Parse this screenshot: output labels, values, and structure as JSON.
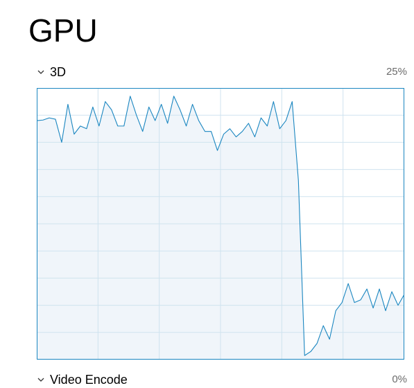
{
  "page": {
    "title": "GPU"
  },
  "engines": [
    {
      "name": "3D",
      "max_label": "25%"
    },
    {
      "name": "Video Encode",
      "max_label": "0%"
    }
  ],
  "colors": {
    "line": "#1a86c0",
    "fill": "#f0f5fa",
    "grid": "#cfe3ef",
    "border": "#1a86c0",
    "percent_text": "#6b6b6b"
  },
  "chart_data": {
    "type": "area",
    "xlabel": "",
    "ylabel": "",
    "ylim": [
      0,
      100
    ],
    "grid": true,
    "values": [
      88,
      88.2,
      89,
      88.5,
      80,
      94,
      83,
      86,
      85,
      93,
      86,
      95,
      92,
      86,
      86,
      97,
      90,
      84,
      93,
      88,
      94,
      87,
      97,
      92,
      86,
      94,
      88,
      84,
      84,
      77,
      83,
      85,
      82,
      84,
      87,
      82,
      89,
      86,
      95,
      85,
      88,
      95,
      66,
      1.5,
      3,
      6,
      12.5,
      7.5,
      18,
      21,
      28,
      21,
      22,
      26,
      19,
      26,
      18,
      25,
      20,
      24
    ]
  }
}
